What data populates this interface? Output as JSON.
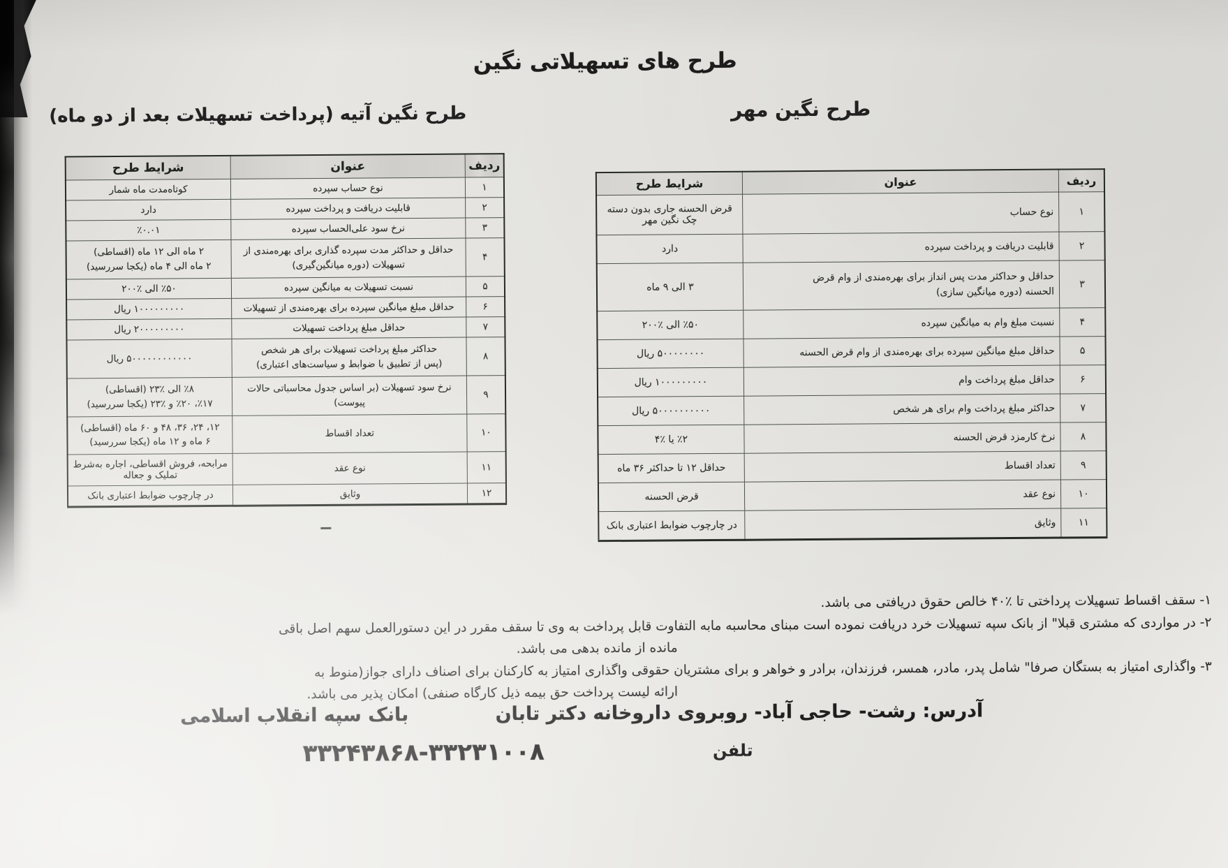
{
  "page_title": "طرح های تسهیلاتی نگین",
  "colors": {
    "paper": "#e9e8e4",
    "ink": "#2b2b2b",
    "table_line": "#4d534d"
  },
  "left_section": {
    "title": "طرح نگین آتیه  (پرداخت تسهیلات بعد از دو ماه)",
    "table": {
      "headers": {
        "no": "ردیف",
        "title": "عنوان",
        "cond": "شرایط طرح"
      },
      "rows": [
        {
          "no": "۱",
          "title": "نوع حساب سپرده",
          "cond": "کوتاه‌مدت ماه شمار"
        },
        {
          "no": "۲",
          "title": "قابلیت دریافت و پرداخت سپرده",
          "cond": "دارد"
        },
        {
          "no": "۳",
          "title": "نرخ سود علی‌الحساب سپرده",
          "cond": "٪۰.۰۱"
        },
        {
          "no": "۴",
          "title": [
            "حداقل و حداکثر مدت سپرده گذاری برای بهره‌مندی از",
            "تسهیلات (دوره میانگین‌گیری)"
          ],
          "cond": [
            "۲ ماه الی ۱۲ ماه (اقساطی)",
            "۲ ماه الی ۴ ماه (یکجا سررسید)"
          ]
        },
        {
          "no": "۵",
          "title": "نسبت تسهیلات به میانگین سپرده",
          "cond": "٪۵۰ الی ٪۲۰۰"
        },
        {
          "no": "۶",
          "title": "حداقل مبلغ میانگین سپرده برای بهره‌مندی از تسهیلات",
          "cond": "۱۰۰۰۰۰۰۰۰۰ ریال"
        },
        {
          "no": "۷",
          "title": "حداقل مبلغ پرداخت تسهیلات",
          "cond": "۲۰۰۰۰۰۰۰۰۰ ریال"
        },
        {
          "no": "۸",
          "title": [
            "حداکثر مبلغ پرداخت تسهیلات برای هر شخص",
            "(پس از تطبیق با ضوابط و سیاست‌های اعتباری)"
          ],
          "cond": "۵۰۰۰۰۰۰۰۰۰۰۰۰ ریال"
        },
        {
          "no": "۹",
          "title": [
            "نرخ سود تسهیلات (بر اساس جدول محاسباتی حالات",
            "پیوست)"
          ],
          "cond": [
            "٪۸ الی ٪۲۳ (اقساطی)",
            "٪۱۷، ٪۲۰ و ٪۲۳ (یکجا سررسید)"
          ]
        },
        {
          "no": "۱۰",
          "title": "تعداد اقساط",
          "cond": [
            "۱۲، ۲۴، ۳۶، ۴۸ و ۶۰ ماه (اقساطی)",
            "۶ ماه و ۱۲ ماه (یکجا سررسید)"
          ]
        },
        {
          "no": "۱۱",
          "title": "نوع عقد",
          "cond": "مرابحه، فروش اقساطی، اجاره به‌شرط تملیک و جعاله"
        },
        {
          "no": "۱۲",
          "title": "وثایق",
          "cond": "در چارچوب ضوابط اعتباری بانک"
        }
      ]
    }
  },
  "right_section": {
    "title": "طرح نگین مهر",
    "table": {
      "headers": {
        "no": "ردیف",
        "title": "عنوان",
        "cond": "شرایط طرح"
      },
      "rows": [
        {
          "no": "۱",
          "title": "نوع حساب",
          "cond": "قرض الحسنه جاری بدون دسته چک نگین مهر"
        },
        {
          "no": "۲",
          "title": "قابلیت دریافت و پرداخت سپرده",
          "cond": "دارد"
        },
        {
          "no": "۳",
          "title": [
            "حداقل و حداکثر مدت پس انداز برای بهره‌مندی از وام قرض",
            "الحسنه (دوره میانگین سازی)"
          ],
          "cond": "۳ الی ۹ ماه"
        },
        {
          "no": "۴",
          "title": "نسبت مبلغ وام به میانگین سپرده",
          "cond": "٪۵۰ الی ٪۲۰۰"
        },
        {
          "no": "۵",
          "title": "حداقل مبلغ میانگین سپرده برای بهره‌مندی از وام قرض الحسنه",
          "cond": "۵۰۰۰۰۰۰۰۰ ریال"
        },
        {
          "no": "۶",
          "title": "حداقل مبلغ پرداخت وام",
          "cond": "۱۰۰۰۰۰۰۰۰۰ ریال"
        },
        {
          "no": "۷",
          "title": "حداکثر مبلغ پرداخت وام برای هر شخص",
          "cond": "۵۰۰۰۰۰۰۰۰۰۰ ریال"
        },
        {
          "no": "۸",
          "title": "نرخ کارمزد قرض الحسنه",
          "cond": "٪۲ یا ٪۴"
        },
        {
          "no": "۹",
          "title": "تعداد اقساط",
          "cond": "حداقل ۱۲ تا حداکثر ۳۶ ماه"
        },
        {
          "no": "۱۰",
          "title": "نوع عقد",
          "cond": "قرض الحسنه"
        },
        {
          "no": "۱۱",
          "title": "وثایق",
          "cond": "در چارچوب ضوابط اعتباری بانک"
        }
      ]
    }
  },
  "notes": [
    {
      "lines": [
        "۱- سقف اقساط تسهیلات پرداختی تا ٪۴۰ خالص حقوق دریافتی می باشد."
      ]
    },
    {
      "lines": [
        "۲- در مواردی که مشتری قبلا\" از بانک سپه تسهیلات خرد دریافت نموده است مبنای محاسبه مابه التفاوت قابل پرداخت به وی تا سقف مقرر در این دستورالعمل سهم اصل باقی",
        "مانده از مانده بدهی می باشد."
      ]
    },
    {
      "lines": [
        "۳- واگذاری امتیاز به بستگان صرفا\" شامل پدر، مادر، همسر، فرزندان، برادر و خواهر و برای مشتریان حقوقی واگذاری امتیاز به کارکنان برای اصناف دارای جواز(منوط به",
        "ارائه لیست پرداخت حق بیمه ذیل کارگاه صنفی) امکان پذیر می باشد."
      ]
    }
  ],
  "footer": {
    "address": "آدرس: رشت- حاجی آباد- روبروی داروخانه دکتر تابان",
    "bank": "بانک سپه انقلاب اسلامی",
    "phone_label": "تلفن",
    "phone": "۳۳۲۴۳۸۶۸-۳۳۲۳۱۰۰۸"
  }
}
